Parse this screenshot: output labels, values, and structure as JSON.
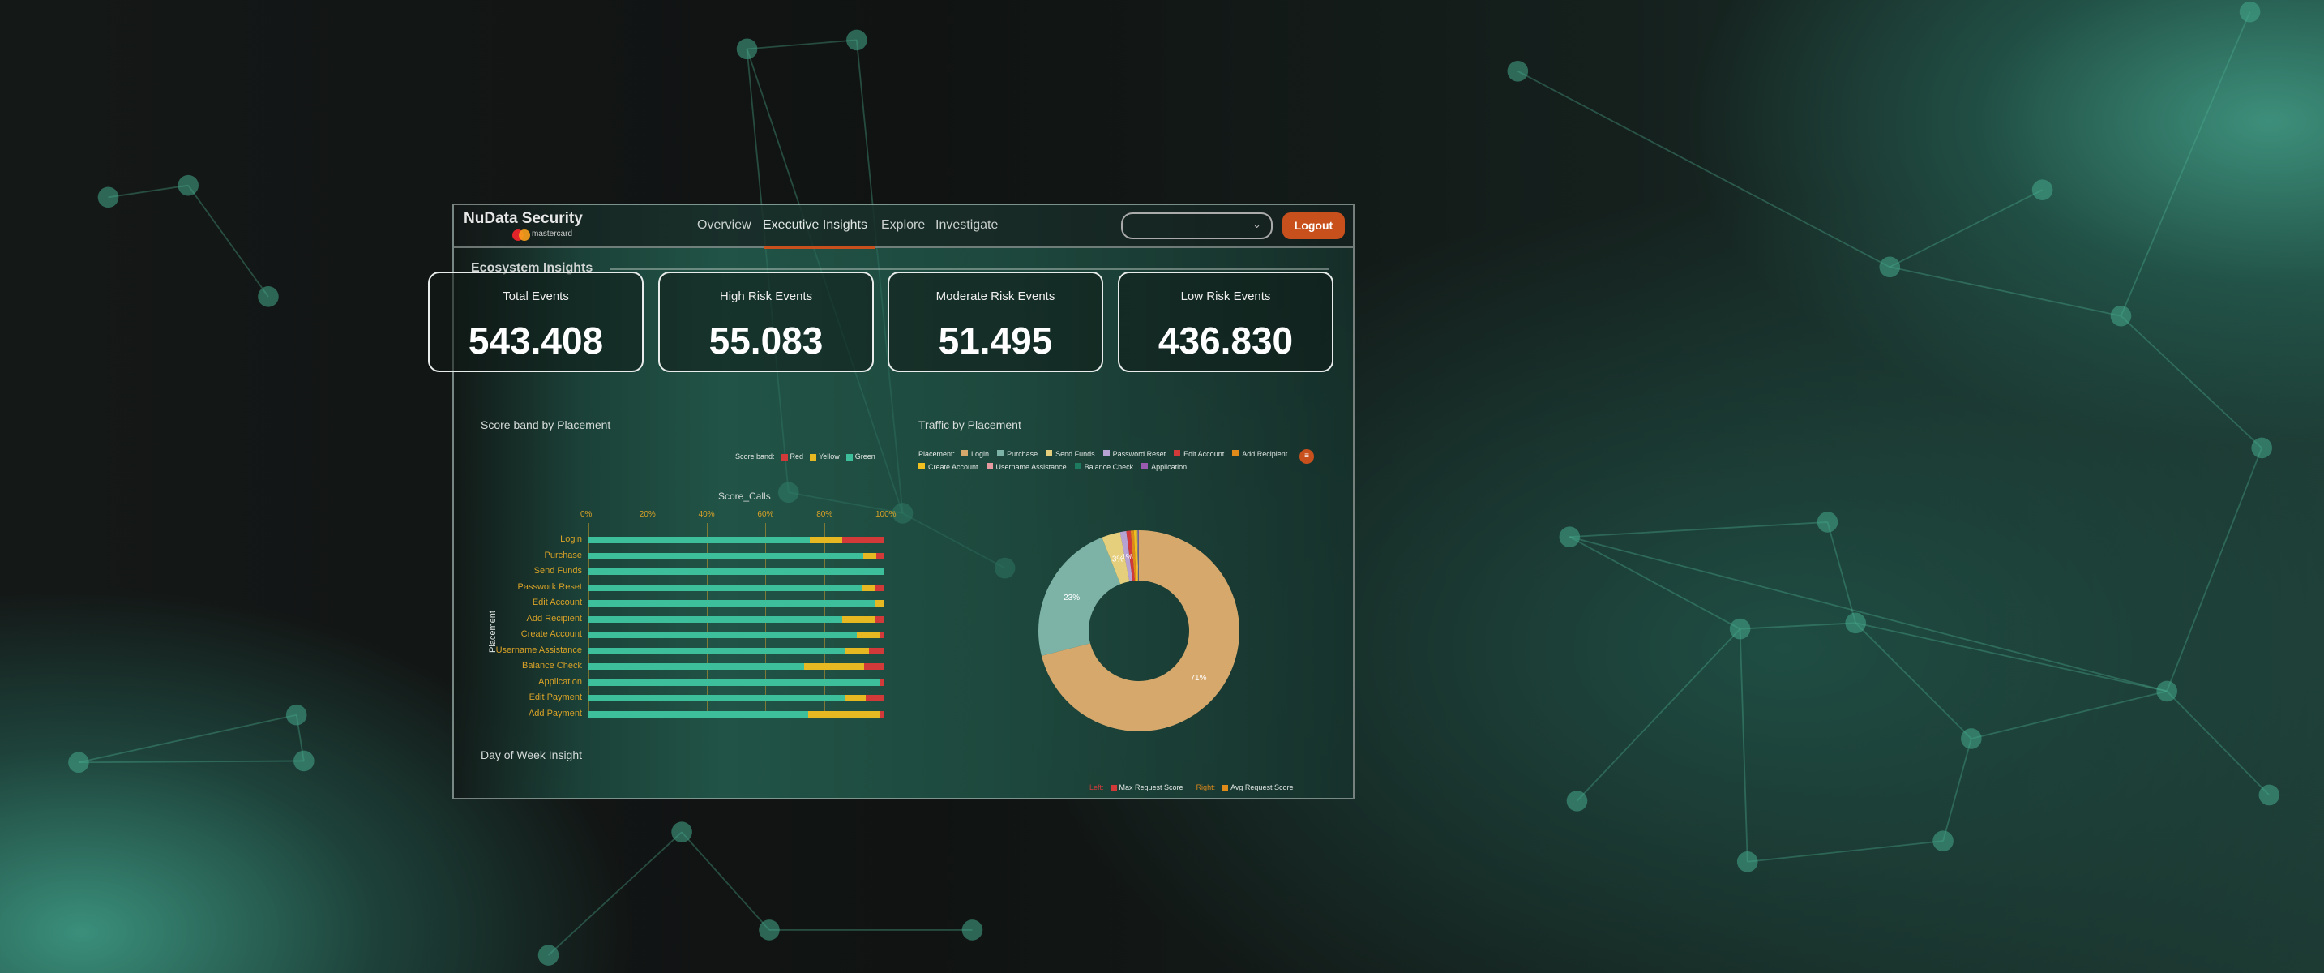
{
  "header": {
    "brand": "NuData Security",
    "brand_sub": "mastercard",
    "nav": [
      "Overview",
      "Executive Insights",
      "Explore",
      "Investigate"
    ],
    "active_nav": "Executive Insights",
    "dropdown_value": "",
    "logout": "Logout",
    "accent": "#c8501d"
  },
  "section": {
    "title": "Ecosystem Insights"
  },
  "kpis": [
    {
      "label": "Total Events",
      "value": "543.408"
    },
    {
      "label": "High Risk Events",
      "value": "55.083"
    },
    {
      "label": "Moderate Risk Events",
      "value": "51.495"
    },
    {
      "label": "Low Risk Events",
      "value": "436.830"
    }
  ],
  "chart_data": [
    {
      "type": "bar",
      "orientation": "horizontal",
      "stacked": true,
      "title": "Score band by Placement",
      "xlabel": "Score_Calls",
      "ylabel": "Placement",
      "legend_title": "Score band:",
      "legend_position": "top-right",
      "x_ticks": [
        "0%",
        "20%",
        "40%",
        "60%",
        "80%",
        "100%"
      ],
      "xlim": [
        0,
        100
      ],
      "grid": true,
      "categories": [
        "Login",
        "Purchase",
        "Send Funds",
        "Passwork Reset",
        "Edit Account",
        "Add Recipient",
        "Create Account",
        "Username Assistance",
        "Balance Check",
        "Application",
        "Edit Payment",
        "Add Payment"
      ],
      "series": [
        {
          "name": "Green",
          "color": "#3dbf9b",
          "values": [
            75,
            93,
            100,
            92.5,
            97,
            86,
            91,
            87,
            73,
            98.5,
            87,
            74.5
          ]
        },
        {
          "name": "Yellow",
          "color": "#e6b922",
          "values": [
            11,
            4.5,
            0,
            4.5,
            3,
            11,
            7.5,
            8,
            20.5,
            0,
            7,
            24.5
          ]
        },
        {
          "name": "Red",
          "color": "#d23a3a",
          "values": [
            14,
            2.5,
            0,
            3,
            0,
            3,
            1.5,
            5,
            6.5,
            1.5,
            6,
            1
          ]
        }
      ]
    },
    {
      "type": "pie",
      "donut": true,
      "title": "Traffic by Placement",
      "legend_title": "Placement:",
      "legend_position": "top",
      "categories": [
        "Login",
        "Purchase",
        "Send Funds",
        "Password Reset",
        "Edit Account",
        "Add Recipient",
        "Create Account",
        "Username Assistance",
        "Balance Check",
        "Application"
      ],
      "values": [
        71,
        23,
        3,
        1,
        0.7,
        0.5,
        0.5,
        0.1,
        0.1,
        0.1
      ],
      "colors": [
        "#d6a86c",
        "#7db3a6",
        "#e6cf7c",
        "#b7a2d4",
        "#d23a3a",
        "#e08a1a",
        "#efc020",
        "#e79aa0",
        "#1d7a5e",
        "#9a5ab0"
      ],
      "data_labels": [
        {
          "slice": "Login",
          "text": "71%"
        },
        {
          "slice": "Purchase",
          "text": "23%"
        },
        {
          "slice": "Send Funds",
          "text": "3%"
        },
        {
          "slice": "Password Reset",
          "text": "1%"
        }
      ]
    },
    {
      "type": "bar",
      "title": "Day of Week Insight",
      "legend": [
        {
          "axis": "Left:",
          "name": "Max Request Score",
          "color": "#d23a3a"
        },
        {
          "axis": "Right:",
          "name": "Avg Request Score",
          "color": "#e08a1a"
        }
      ]
    }
  ]
}
